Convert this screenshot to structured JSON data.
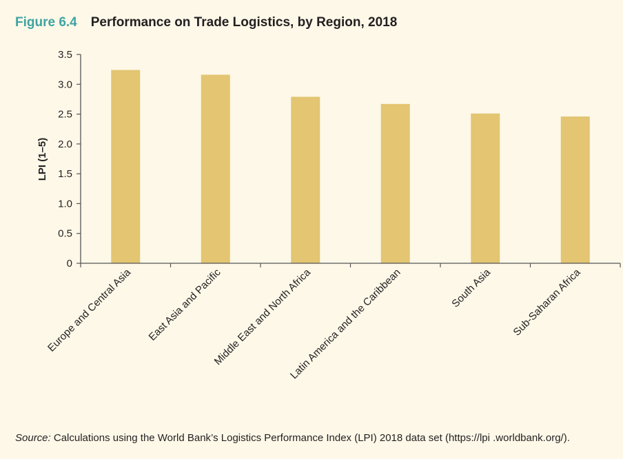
{
  "figure_label": "Figure 6.4",
  "chart_data": {
    "type": "bar",
    "title": "Performance on Trade Logistics, by Region, 2018",
    "xlabel": "",
    "ylabel": "LPI (1–5)",
    "ylim": [
      0,
      3.5
    ],
    "yticks": [
      "0",
      "0.5",
      "1.0",
      "1.5",
      "2.0",
      "2.5",
      "3.0",
      "3.5"
    ],
    "grid": false,
    "categories": [
      "Europe and Central Asia",
      "East Asia and Pacific",
      "Middle East and North Africa",
      "Latin America and the Caribbean",
      "South Asia",
      "Sub-Saharan Africa"
    ],
    "values": [
      3.24,
      3.16,
      2.79,
      2.67,
      2.51,
      2.46
    ],
    "bar_color": "#e3c572"
  },
  "source": {
    "label": "Source:",
    "text": " Calculations using the World Bank’s Logistics Performance Index (LPI) 2018 data set (https://lpi .worldbank.org/)."
  }
}
